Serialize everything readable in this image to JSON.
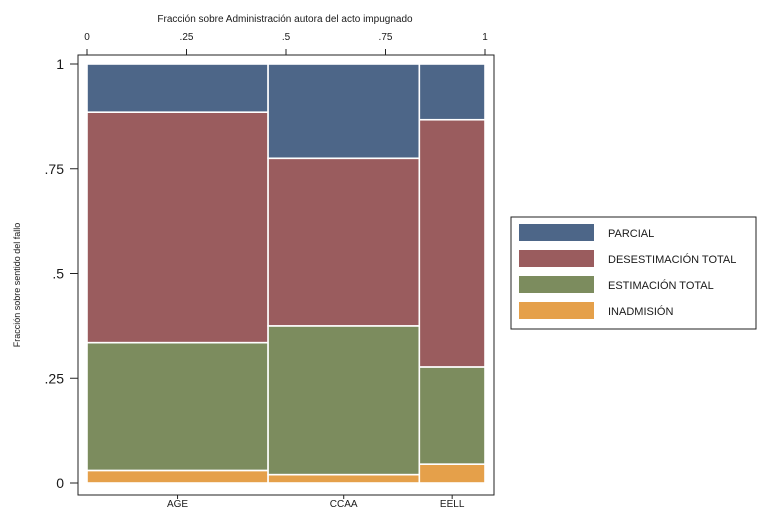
{
  "chart_data": {
    "type": "mosaic",
    "top_axis_title": "Fracción sobre Administración autora del acto impugnado",
    "top_ticks": [
      {
        "value": 0,
        "label": "0"
      },
      {
        "value": 0.25,
        "label": ".25"
      },
      {
        "value": 0.5,
        "label": ".5"
      },
      {
        "value": 0.75,
        "label": ".75"
      },
      {
        "value": 1,
        "label": "1"
      }
    ],
    "ylabel": "Fracción sobre sentido del fallo",
    "y_ticks": [
      {
        "value": 0,
        "label": "0"
      },
      {
        "value": 0.25,
        "label": ".25"
      },
      {
        "value": 0.5,
        "label": ".5"
      },
      {
        "value": 0.75,
        "label": ".75"
      },
      {
        "value": 1,
        "label": "1"
      }
    ],
    "ylim": [
      0,
      1
    ],
    "xlim": [
      0,
      1
    ],
    "categories": [
      "AGE",
      "CCAA",
      "EELL"
    ],
    "category_widths": [
      0.455,
      0.38,
      0.165
    ],
    "series": [
      {
        "name": "INADMISIÓN",
        "color": "#e5a04a",
        "values": [
          0.03,
          0.02,
          0.045
        ]
      },
      {
        "name": "ESTIMACIÓN TOTAL",
        "color": "#7c8c5e",
        "values": [
          0.305,
          0.355,
          0.232
        ]
      },
      {
        "name": "DESESTIMACIÓN TOTAL",
        "color": "#9a5c5e",
        "values": [
          0.55,
          0.4,
          0.59
        ]
      },
      {
        "name": "PARCIAL",
        "color": "#4d6688",
        "values": [
          0.115,
          0.225,
          0.133
        ]
      }
    ],
    "legend_order": [
      "PARCIAL",
      "DESESTIMACIÓN TOTAL",
      "ESTIMACIÓN TOTAL",
      "INADMISIÓN"
    ],
    "legend_position": "right",
    "grid": false
  }
}
